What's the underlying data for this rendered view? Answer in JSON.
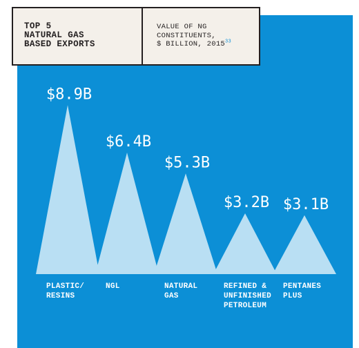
{
  "header": {
    "title": "TOP 5\nNATURAL GAS\nBASED EXPORTS",
    "subtitle": "VALUE OF NG\nCONSTITUENTS,\n$ BILLION, 2015",
    "footnote": "33"
  },
  "colors": {
    "background": "#0c8fd6",
    "triangle": "#b9dff3",
    "header_bg": "#f4f0ea",
    "text_dark": "#231f20",
    "text_light": "#ffffff"
  },
  "chart_data": {
    "type": "bar",
    "title": "TOP 5 NATURAL GAS BASED EXPORTS",
    "subtitle": "VALUE OF NG CONSTITUENTS, $ BILLION, 2015",
    "categories": [
      [
        "PLASTIC/",
        "RESINS"
      ],
      [
        "NGL"
      ],
      [
        "NATURAL",
        "GAS"
      ],
      [
        "REFINED &",
        "UNFINISHED",
        "PETROLEUM"
      ],
      [
        "PENTANES",
        "PLUS"
      ]
    ],
    "values": [
      8.9,
      6.4,
      5.3,
      3.2,
      3.1
    ],
    "value_labels": [
      "$8.9B",
      "$6.4B",
      "$5.3B",
      "$3.2B",
      "$3.1B"
    ],
    "unit": "$ billion",
    "ylim": [
      0,
      10
    ],
    "grid": false,
    "legend": "none"
  }
}
